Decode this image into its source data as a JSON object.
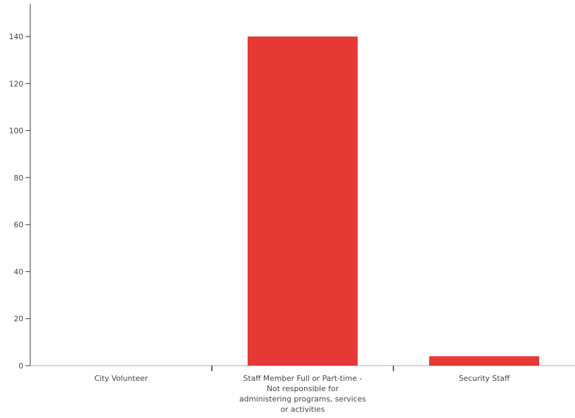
{
  "chart_data": {
    "type": "bar",
    "categories": [
      "City Volunteer",
      "Staff Member Full or Part-time - Not responsible for administering programs, services or activities",
      "Security Staff"
    ],
    "category_label_lines": [
      [
        "City Volunteer"
      ],
      [
        "Staff Member Full or Part-time -",
        "Not responsible for",
        "administering programs, services",
        "or activities"
      ],
      [
        "Security Staff"
      ]
    ],
    "values": [
      0,
      140,
      4
    ],
    "ylim": [
      0,
      150
    ],
    "yticks": [
      0,
      20,
      40,
      60,
      80,
      100,
      120,
      140
    ],
    "title": "",
    "xlabel": "",
    "ylabel": "",
    "grid": false,
    "colors": {
      "bar": "#e53935",
      "axis": "#333333",
      "text": "#444444"
    }
  }
}
